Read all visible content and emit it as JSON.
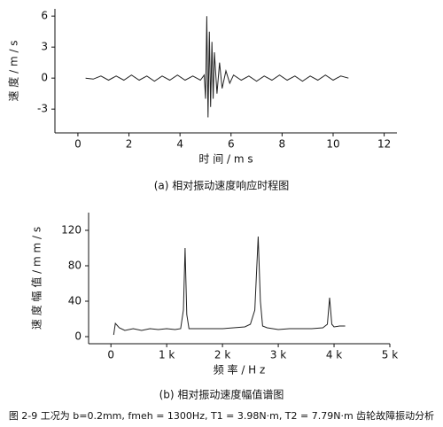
{
  "chart_data": [
    {
      "type": "line",
      "x_label": "时 间 / m s",
      "y_label": "速 度 / m / s",
      "caption": "(a) 相对振动速度响应时程图",
      "xlim": [
        -0.9,
        12.5
      ],
      "xticks": [
        0,
        2,
        4,
        6,
        8,
        10,
        12
      ],
      "ylim": [
        -5.3,
        6.7
      ],
      "yticks": [
        -3,
        0,
        3,
        6
      ],
      "color": "#222222",
      "x": [
        0.3,
        0.6,
        0.9,
        1.2,
        1.5,
        1.8,
        2.1,
        2.4,
        2.7,
        3.0,
        3.3,
        3.6,
        3.9,
        4.2,
        4.5,
        4.8,
        4.95,
        5.0,
        5.05,
        5.1,
        5.15,
        5.2,
        5.25,
        5.3,
        5.35,
        5.45,
        5.55,
        5.65,
        5.8,
        5.95,
        6.1,
        6.4,
        6.7,
        7.0,
        7.3,
        7.6,
        7.9,
        8.2,
        8.5,
        8.8,
        9.1,
        9.4,
        9.7,
        10.0,
        10.3,
        10.6
      ],
      "values": [
        0,
        -0.1,
        0.2,
        -0.2,
        0.2,
        -0.2,
        0.3,
        -0.2,
        0.2,
        -0.3,
        0.2,
        -0.2,
        0.3,
        -0.2,
        0.2,
        -0.2,
        0.3,
        -2.0,
        6.0,
        -3.8,
        4.5,
        -2.8,
        3.5,
        -2.0,
        2.5,
        -1.5,
        1.5,
        -1.0,
        0.7,
        -0.5,
        0.3,
        -0.2,
        0.2,
        -0.3,
        0.2,
        -0.2,
        0.3,
        -0.2,
        0.2,
        -0.3,
        0.2,
        -0.2,
        0.3,
        -0.2,
        0.2,
        0
      ]
    },
    {
      "type": "line",
      "x_label": "频 率 / H z",
      "y_label": "速 度 幅 值 / m m / s",
      "caption": "(b) 相对振动速度幅值谱图",
      "xlim": [
        -400,
        5000
      ],
      "xticks": [
        0,
        {
          "value": 1000,
          "label": "1 k"
        },
        {
          "value": 2000,
          "label": "2 k"
        },
        {
          "value": 3000,
          "label": "3 k"
        },
        {
          "value": 4000,
          "label": "4 k"
        },
        {
          "value": 5000,
          "label": "5 k"
        }
      ],
      "ylim": [
        -8,
        140
      ],
      "yticks": [
        0,
        40,
        80,
        120
      ],
      "color": "#222222",
      "x": [
        50,
        80,
        150,
        250,
        400,
        550,
        700,
        850,
        1000,
        1150,
        1250,
        1300,
        1330,
        1360,
        1400,
        1600,
        1800,
        2000,
        2200,
        2400,
        2500,
        2580,
        2640,
        2680,
        2720,
        2800,
        3000,
        3200,
        3400,
        3600,
        3800,
        3880,
        3920,
        3960,
        4000,
        4100,
        4200
      ],
      "values": [
        2,
        15,
        10,
        7,
        9,
        7,
        9,
        8,
        9,
        8,
        9,
        30,
        100,
        25,
        9,
        9,
        9,
        9,
        10,
        11,
        14,
        30,
        113,
        40,
        12,
        10,
        8,
        9,
        9,
        9,
        10,
        14,
        44,
        14,
        11,
        12,
        12
      ]
    }
  ],
  "figure_caption": "图 2-9 工况为 b=0.2mm, fmeh = 1300Hz, T1 = 3.98N·m, T2 = 7.79N·m 齿轮故障振动分析"
}
